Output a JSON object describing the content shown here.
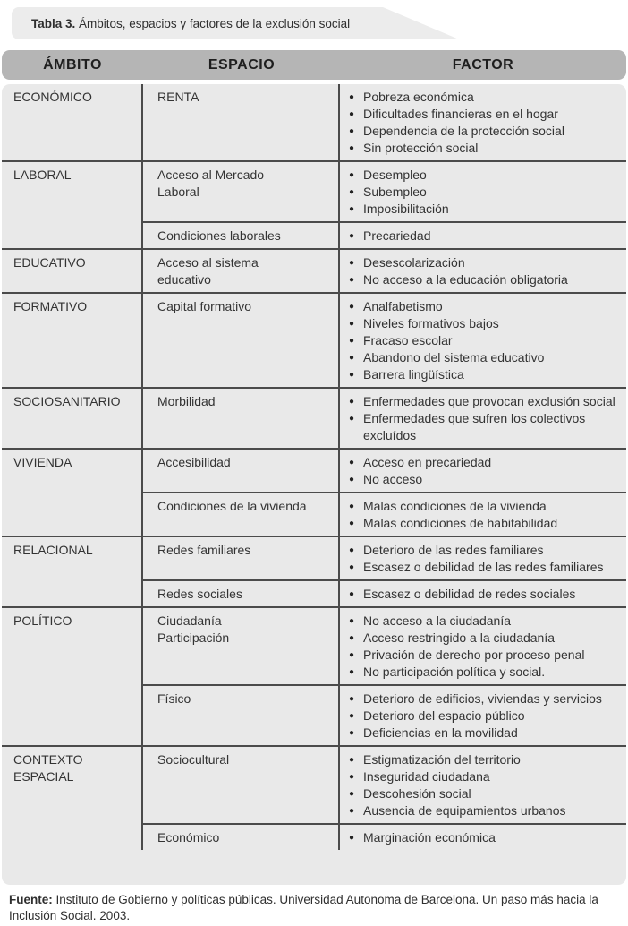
{
  "title": {
    "bold": "Tabla 3.",
    "rest": " Ámbitos, espacios y factores de la exclusión social"
  },
  "table": {
    "headers": [
      "ÁMBITO",
      "ESPACIO",
      "FACTOR"
    ],
    "bullet_icon": "●",
    "colors": {
      "header_bg": "#b5b5b5",
      "body_bg": "#e9e9e9",
      "banner_bg": "#ececec",
      "rule": "#4b4b4b"
    },
    "groups": [
      {
        "ambito": "ECONÓMICO",
        "rows": [
          {
            "espacio": "RENTA",
            "factores": [
              "Pobreza económica",
              "Dificultades financieras en el hogar",
              "Dependencia de la protección social",
              "Sin protección social"
            ]
          }
        ]
      },
      {
        "ambito": "LABORAL",
        "rows": [
          {
            "espacio": "Acceso al Mercado\nLaboral",
            "factores": [
              "Desempleo",
              "Subempleo",
              "Imposibilitación"
            ]
          },
          {
            "espacio": "Condiciones laborales",
            "factores": [
              "Precariedad"
            ]
          }
        ]
      },
      {
        "ambito": "EDUCATIVO",
        "rows": [
          {
            "espacio": "Acceso al sistema\neducativo",
            "factores": [
              "Desescolarización",
              "No acceso a la educación obligatoria"
            ]
          }
        ]
      },
      {
        "ambito": "FORMATIVO",
        "rows": [
          {
            "espacio": "Capital formativo",
            "factores": [
              "Analfabetismo",
              "Niveles formativos bajos",
              "Fracaso escolar",
              "Abandono del sistema educativo",
              "Barrera lingüística"
            ]
          }
        ]
      },
      {
        "ambito": "SOCIOSANITARIO",
        "rows": [
          {
            "espacio": "Morbilidad",
            "factores": [
              "Enfermedades que provocan exclusión social",
              "Enfermedades que sufren los colectivos excluídos"
            ]
          }
        ]
      },
      {
        "ambito": "VIVIENDA",
        "rows": [
          {
            "espacio": "Accesibilidad",
            "factores": [
              "Acceso en precariedad",
              "No acceso"
            ]
          },
          {
            "espacio": "Condiciones de la vivienda",
            "factores": [
              "Malas condiciones de la vivienda",
              "Malas condiciones de habitabilidad"
            ]
          }
        ]
      },
      {
        "ambito": "RELACIONAL",
        "rows": [
          {
            "espacio": "Redes familiares",
            "factores": [
              "Deterioro de las redes familiares",
              "Escasez o debilidad de las redes familiares"
            ]
          },
          {
            "espacio": "Redes sociales",
            "factores": [
              "Escasez o debilidad de redes sociales"
            ]
          }
        ]
      },
      {
        "ambito": "POLÍTICO",
        "rows": [
          {
            "espacio": "Ciudadanía\nParticipación",
            "factores": [
              "No acceso a la ciudadanía",
              "Acceso restringido a la ciudadanía",
              "Privación de derecho por proceso penal",
              "No participación política y social."
            ]
          },
          {
            "espacio": "Físico",
            "factores": [
              "Deterioro de edificios, viviendas y servicios",
              "Deterioro del espacio público",
              "Deficiencias en la movilidad"
            ]
          }
        ]
      },
      {
        "ambito": "CONTEXTO\nESPACIAL",
        "rows": [
          {
            "espacio": "Sociocultural",
            "factores": [
              "Estigmatización del territorio",
              "Inseguridad ciudadana",
              "Descohesión social",
              "Ausencia de equipamientos urbanos"
            ]
          },
          {
            "espacio": "Económico",
            "factores": [
              "Marginación económica"
            ]
          }
        ]
      }
    ]
  },
  "footer": {
    "bold": "Fuente:",
    "rest": " Instituto de Gobierno y políticas públicas. Universidad Autonoma de Barcelona. Un paso más hacia la Inclusión Social. 2003."
  }
}
